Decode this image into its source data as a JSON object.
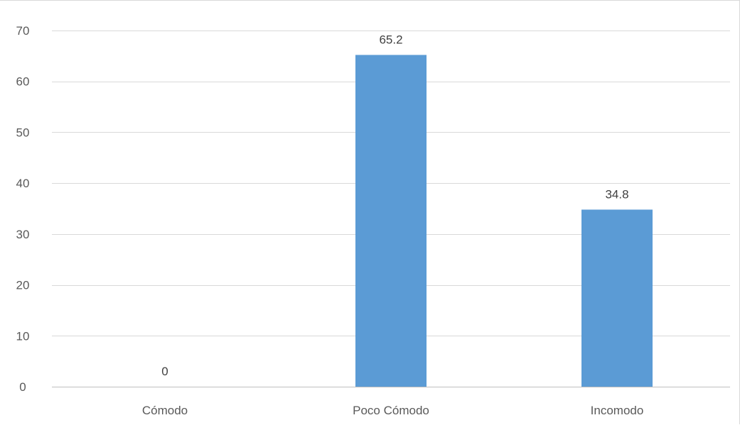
{
  "chart_data": {
    "type": "bar",
    "categories": [
      "Cómodo",
      "Poco Cómodo",
      "Incomodo"
    ],
    "values": [
      0,
      65.2,
      34.8
    ],
    "data_labels": [
      "0",
      "65.2",
      "34.8"
    ],
    "title": "",
    "xlabel": "",
    "ylabel": "",
    "ylim": [
      0,
      70
    ],
    "yticks": [
      0,
      10,
      20,
      30,
      40,
      50,
      60,
      70
    ],
    "grid": true,
    "legend": "none",
    "bar_color": "#5b9bd5"
  }
}
